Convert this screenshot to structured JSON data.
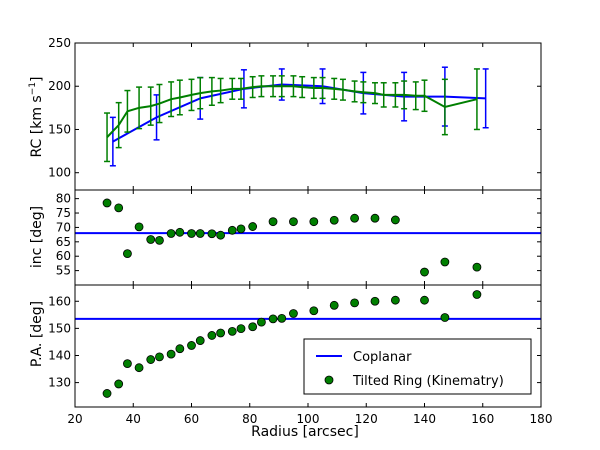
{
  "colors": {
    "coplanar": "#0000ff",
    "tilted": "#007f00",
    "marker_edge": "#000000"
  },
  "chart_data": [
    {
      "type": "line",
      "panel": "rc",
      "ylabel": "RC [km s⁻¹]",
      "ylabel_main": "RC [km s",
      "ylabel_sup": "−1",
      "ylabel_close": "]",
      "ylim": [
        80,
        250
      ],
      "yticks": [
        100,
        150,
        200,
        250
      ],
      "xlim": [
        20,
        180
      ],
      "series": [
        {
          "name": "Coplanar",
          "color": "#0000ff",
          "x": [
            33,
            48,
            63,
            78,
            91,
            105,
            119,
            133,
            147,
            161
          ],
          "y": [
            136,
            164,
            186,
            197,
            202,
            200,
            192,
            188,
            188,
            186
          ],
          "err": [
            28,
            26,
            24,
            22,
            18,
            20,
            24,
            28,
            34,
            34
          ]
        },
        {
          "name": "Tilted Ring (Kinematry)",
          "color": "#007f00",
          "x": [
            31,
            35,
            38,
            42,
            46,
            49,
            53,
            56,
            60,
            63,
            67,
            70,
            74,
            77,
            81,
            84,
            88,
            91,
            95,
            98,
            102,
            105,
            109,
            112,
            116,
            119,
            123,
            126,
            130,
            133,
            137,
            140,
            147,
            158
          ],
          "y": [
            141,
            155,
            171,
            175,
            177,
            180,
            185,
            187,
            190,
            192,
            194,
            195,
            197,
            197,
            199,
            200,
            200,
            200,
            200,
            199,
            198,
            198,
            197,
            196,
            194,
            193,
            192,
            190,
            190,
            190,
            189,
            189,
            176,
            185
          ],
          "err": [
            28,
            26,
            24,
            24,
            22,
            22,
            20,
            20,
            18,
            18,
            16,
            14,
            12,
            12,
            12,
            12,
            12,
            12,
            12,
            12,
            12,
            12,
            12,
            12,
            12,
            12,
            12,
            14,
            14,
            16,
            16,
            18,
            32,
            35
          ]
        }
      ]
    },
    {
      "type": "scatter",
      "panel": "inc",
      "ylabel": "inc [deg]",
      "ylim": [
        50,
        83
      ],
      "yticks": [
        55,
        60,
        65,
        70,
        75,
        80
      ],
      "xlim": [
        20,
        180
      ],
      "hline": {
        "name": "Coplanar",
        "y": 68
      },
      "series": [
        {
          "name": "Tilted Ring (Kinematry)",
          "x": [
            31,
            35,
            38,
            42,
            46,
            49,
            53,
            56,
            60,
            63,
            67,
            70,
            74,
            77,
            81,
            88,
            95,
            102,
            109,
            116,
            123,
            130,
            140,
            147,
            158
          ],
          "y": [
            78.5,
            76.8,
            60.9,
            70.2,
            65.8,
            65.5,
            67.9,
            68.3,
            67.9,
            67.9,
            67.8,
            67.3,
            69.0,
            69.5,
            70.3,
            72.0,
            72.0,
            72.0,
            72.5,
            73.2,
            73.2,
            72.6,
            54.5,
            58.0,
            56.2
          ]
        }
      ]
    },
    {
      "type": "scatter",
      "panel": "pa",
      "ylabel": "P.A. [deg]",
      "ylim": [
        121,
        166
      ],
      "yticks": [
        130,
        140,
        150,
        160
      ],
      "xlim": [
        20,
        180
      ],
      "xlabel": "Radius [arcsec]",
      "xticks": [
        20,
        40,
        60,
        80,
        100,
        120,
        140,
        160,
        180
      ],
      "hline": {
        "name": "Coplanar",
        "y": 153.5
      },
      "series": [
        {
          "name": "Tilted Ring (Kinematry)",
          "x": [
            31,
            35,
            38,
            42,
            46,
            49,
            53,
            56,
            60,
            63,
            67,
            70,
            74,
            77,
            81,
            84,
            88,
            91,
            95,
            102,
            109,
            116,
            123,
            130,
            140,
            147,
            158
          ],
          "y": [
            126,
            129.5,
            137,
            135.5,
            138.5,
            139.5,
            140.5,
            142.5,
            143.7,
            145.5,
            147.4,
            148.3,
            148.9,
            149.9,
            150.6,
            152.3,
            153.5,
            153.7,
            155.5,
            156.5,
            158.5,
            159.4,
            160.0,
            160.4,
            160.4,
            154.0,
            162.5
          ]
        }
      ]
    }
  ],
  "legend": {
    "placement": "lower-right",
    "items": [
      {
        "label": "Coplanar",
        "kind": "line"
      },
      {
        "label": "Tilted Ring (Kinematry)",
        "kind": "marker"
      }
    ]
  }
}
